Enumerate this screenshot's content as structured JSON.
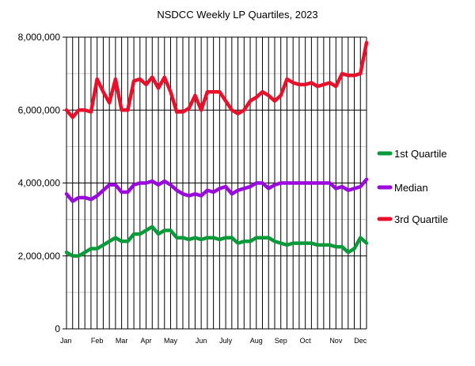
{
  "chart_data": {
    "type": "line",
    "title": "NSDCC Weekly LP Quartiles, 2023",
    "xlabel": "",
    "ylabel": "",
    "ylim": [
      0,
      8000000
    ],
    "y_ticks": [
      "0",
      "2,000,000",
      "4,000,000",
      "6,000,000",
      "8,000,000"
    ],
    "y_tick_values": [
      0,
      2000000,
      4000000,
      6000000,
      8000000
    ],
    "x_tick_labels": [
      {
        "label": "Jan",
        "week": 0
      },
      {
        "label": "Feb",
        "week": 5
      },
      {
        "label": "Mar",
        "week": 9
      },
      {
        "label": "Apr",
        "week": 13
      },
      {
        "label": "May",
        "week": 17
      },
      {
        "label": "Jun",
        "week": 22
      },
      {
        "label": "July",
        "week": 26
      },
      {
        "label": "Aug",
        "week": 31
      },
      {
        "label": "Sep",
        "week": 35
      },
      {
        "label": "Oct",
        "week": 39
      },
      {
        "label": "Nov",
        "week": 44
      },
      {
        "label": "Dec",
        "week": 48
      }
    ],
    "grid": true,
    "legend_position": "right",
    "series": [
      {
        "name": "1st Quartile",
        "color": "#0a9a3a",
        "values": [
          2100000,
          2000000,
          2000000,
          2100000,
          2200000,
          2200000,
          2300000,
          2400000,
          2500000,
          2400000,
          2400000,
          2600000,
          2600000,
          2700000,
          2800000,
          2600000,
          2700000,
          2700000,
          2500000,
          2500000,
          2450000,
          2500000,
          2450000,
          2500000,
          2500000,
          2450000,
          2500000,
          2500000,
          2350000,
          2400000,
          2400000,
          2500000,
          2500000,
          2500000,
          2400000,
          2350000,
          2300000,
          2350000,
          2350000,
          2350000,
          2350000,
          2300000,
          2300000,
          2300000,
          2250000,
          2250000,
          2100000,
          2200000,
          2500000,
          2350000
        ]
      },
      {
        "name": "Median",
        "color": "#9a0adc",
        "values": [
          3700000,
          3500000,
          3600000,
          3600000,
          3550000,
          3650000,
          3800000,
          3950000,
          3950000,
          3750000,
          3750000,
          3950000,
          4000000,
          4000000,
          4050000,
          3950000,
          4050000,
          3950000,
          3800000,
          3700000,
          3650000,
          3700000,
          3650000,
          3800000,
          3750000,
          3850000,
          3900000,
          3700000,
          3800000,
          3850000,
          3900000,
          4000000,
          4000000,
          3850000,
          3950000,
          4000000,
          4000000,
          4000000,
          4000000,
          4000000,
          4000000,
          4000000,
          4000000,
          4000000,
          3850000,
          3900000,
          3800000,
          3850000,
          3900000,
          4100000
        ]
      },
      {
        "name": "3rd Quartile",
        "color": "#e8102a",
        "values": [
          6000000,
          5800000,
          6000000,
          6000000,
          5950000,
          6850000,
          6500000,
          6200000,
          6850000,
          6000000,
          6000000,
          6800000,
          6850000,
          6700000,
          6900000,
          6600000,
          6900000,
          6500000,
          5950000,
          5950000,
          6050000,
          6400000,
          6000000,
          6500000,
          6500000,
          6500000,
          6250000,
          6000000,
          5900000,
          6000000,
          6250000,
          6350000,
          6500000,
          6400000,
          6250000,
          6400000,
          6850000,
          6750000,
          6700000,
          6700000,
          6750000,
          6650000,
          6700000,
          6750000,
          6650000,
          7000000,
          6950000,
          6950000,
          7000000,
          7850000
        ]
      }
    ]
  }
}
